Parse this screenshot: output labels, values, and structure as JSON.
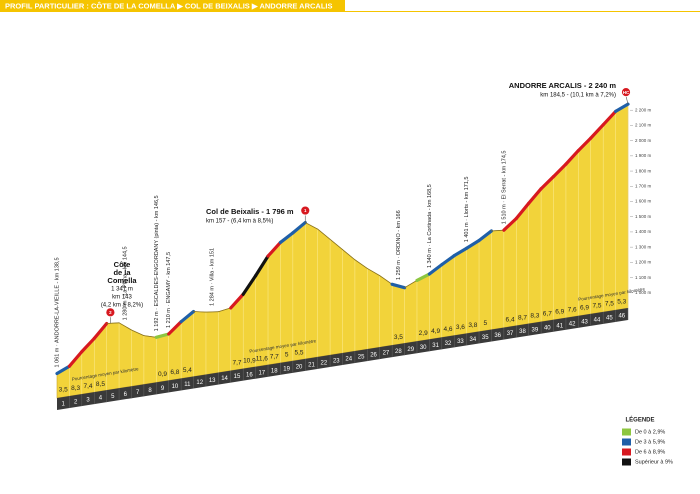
{
  "chart_data": {
    "type": "area",
    "title": "PROFIL PARTICULIER : CÔTE DE LA COMELLA ▶ COL DE BEIXALIS ▶ ANDORRE ARCALIS",
    "x": [
      0,
      1,
      2,
      3,
      4,
      5,
      6,
      7,
      8,
      9,
      10,
      11,
      12,
      13,
      14,
      15,
      16,
      17,
      18,
      19,
      20,
      21,
      22,
      23,
      24,
      25,
      26,
      27,
      28,
      29,
      30,
      31,
      32,
      33,
      34,
      35,
      36,
      37,
      38,
      39,
      40,
      41,
      42,
      43,
      44,
      45,
      46
    ],
    "values": [
      1061,
      1096,
      1179,
      1253,
      1338,
      1330,
      1270,
      1220,
      1196,
      1205,
      1273,
      1327,
      1310,
      1300,
      1312,
      1389,
      1498,
      1614,
      1691,
      1741,
      1796,
      1740,
      1660,
      1580,
      1500,
      1430,
      1370,
      1300,
      1265,
      1300,
      1329,
      1378,
      1424,
      1460,
      1498,
      1548,
      1540,
      1604,
      1691,
      1774,
      1841,
      1910,
      1986,
      2055,
      2130,
      2205,
      2240
    ],
    "color": "#f2d33a",
    "xlim": [
      0,
      46
    ],
    "xticks": [
      1,
      2,
      3,
      4,
      5,
      6,
      7,
      8,
      9,
      10,
      11,
      12,
      13,
      14,
      15,
      16,
      17,
      18,
      19,
      20,
      21,
      22,
      23,
      24,
      25,
      26,
      27,
      28,
      29,
      30,
      31,
      32,
      33,
      34,
      35,
      36,
      37,
      38,
      39,
      40,
      41,
      42,
      43,
      44,
      45,
      46
    ],
    "ylim": [
      900,
      2300
    ],
    "yticks": [
      {
        "value": 1000,
        "label": "1 000 m"
      },
      {
        "value": 1100,
        "label": "1 100 m"
      },
      {
        "value": 1200,
        "label": "1 200 m"
      },
      {
        "value": 1300,
        "label": "1 300 m"
      },
      {
        "value": 1400,
        "label": "1 400 m"
      },
      {
        "value": 1500,
        "label": "1 500 m"
      },
      {
        "value": 1600,
        "label": "1 600 m"
      },
      {
        "value": 1700,
        "label": "1 700 m"
      },
      {
        "value": 1800,
        "label": "1 800 m"
      },
      {
        "value": 1900,
        "label": "1 900 m"
      },
      {
        "value": 2000,
        "label": "2 000 m"
      },
      {
        "value": 2100,
        "label": "2 100 m"
      },
      {
        "value": 2200,
        "label": "2 200 m"
      }
    ],
    "segment_labels": [
      "3,5",
      "8,3",
      "7,4",
      "8,5",
      null,
      null,
      null,
      null,
      "0,9",
      "6,8",
      "5,4",
      null,
      null,
      null,
      "7,7",
      "10,9",
      "11,6",
      "7,7",
      "5",
      "5,5",
      null,
      null,
      null,
      null,
      null,
      null,
      null,
      "3,5",
      null,
      "2,9",
      "4,9",
      "4,6",
      "3,6",
      "3,8",
      "5",
      null,
      "6,4",
      "8,7",
      "8,3",
      "6,7",
      "6,9",
      "7,6",
      "6,9",
      "7,5",
      "7,5",
      "5,3"
    ],
    "segment_colors": [
      "#1f5fa8",
      "#d71920",
      "#d71920",
      "#d71920",
      null,
      null,
      null,
      null,
      "#8dc63f",
      "#d71920",
      "#1f5fa8",
      null,
      null,
      null,
      "#d71920",
      "#111111",
      "#111111",
      "#d71920",
      "#1f5fa8",
      "#1f5fa8",
      null,
      null,
      null,
      null,
      null,
      null,
      null,
      "#1f5fa8",
      null,
      "#8dc63f",
      "#1f5fa8",
      "#1f5fa8",
      "#1f5fa8",
      "#1f5fa8",
      "#1f5fa8",
      null,
      "#d71920",
      "#d71920",
      "#d71920",
      "#d71920",
      "#d71920",
      "#d71920",
      "#d71920",
      "#d71920",
      "#d71920",
      "#1f5fa8"
    ],
    "places": [
      {
        "x": 0,
        "text": "1 061 m · ANDORRE-LA-VIEILLE - km 138,5"
      },
      {
        "x": 5.5,
        "text": "1 280 m · La Plana - km 144,5"
      },
      {
        "x": 8,
        "text": "1 192 m · ESCALDES-ENGORDANY (pinta) - km 146,5"
      },
      {
        "x": 9,
        "text": "1 210 m · ENGAMY - km 147,5"
      },
      {
        "x": 12.5,
        "text": "1 284 m · Villa - km 151"
      },
      {
        "x": 27.5,
        "text": "1 259 m · ORDINO - km 166"
      },
      {
        "x": 30,
        "text": "1 340 m · La Cortinada - km 168,5"
      },
      {
        "x": 33,
        "text": "1 401 m · Llorts - km 171,5"
      },
      {
        "x": 36,
        "text": "1 510 m · El Serrat - km 174,5"
      }
    ],
    "climbs": [
      {
        "x": 4.3,
        "marker": "2",
        "lines": [
          "Côte",
          "de la",
          "Comella",
          "1 347 m",
          "km 143",
          "(4,2 km à 8,2%)"
        ]
      },
      {
        "x": 20,
        "marker": "1",
        "lines": [
          "Col de Beixalis - 1 796 m",
          "km 157 - (6,4 km à 8,5%)"
        ]
      },
      {
        "x": 46,
        "marker": "HC",
        "lines": [
          "ANDORRE ARCALIS - 2 240 m",
          "km 184,5 - (10,1 km à 7,2%)"
        ]
      }
    ],
    "notes": [
      "Pourcentage moyen par kilomètre",
      "Pourcentage moyen par kilomètre",
      "Pourcentage moyen par kilomètre"
    ],
    "legend": {
      "title": "LÉGENDE",
      "items": [
        {
          "label": "De 0 à 2,9%",
          "color": "#8dc63f"
        },
        {
          "label": "De 3 à 5,9%",
          "color": "#1f5fa8"
        },
        {
          "label": "De 6 à 8,9%",
          "color": "#d71920"
        },
        {
          "label": "Supérieur à 9%",
          "color": "#111111"
        }
      ]
    }
  }
}
